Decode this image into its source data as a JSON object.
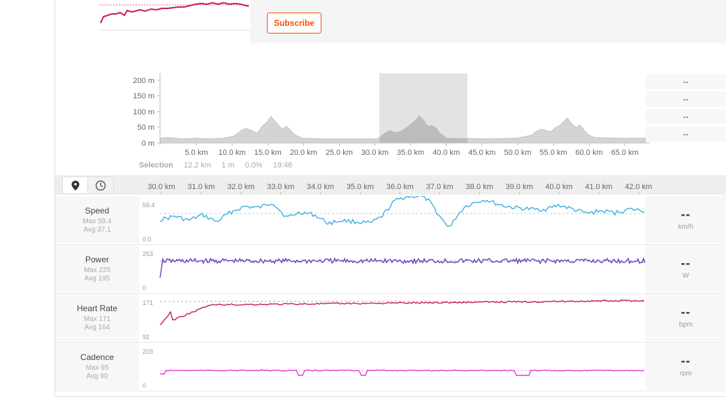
{
  "subscribe_label": "Subscribe",
  "elevation": {
    "y_ticks": [
      "200 m",
      "150 m",
      "100 m",
      "50 m",
      "0 m"
    ],
    "x_ticks": [
      "5.0 km",
      "10.0 km",
      "15.0 km",
      "20.0 km",
      "25.0 km",
      "30.0 km",
      "35.0 km",
      "40.0 km",
      "45.0 km",
      "50.0 km",
      "55.0 km",
      "60.0 km",
      "65.0 km"
    ]
  },
  "selection": {
    "label": "Selection",
    "distance": "12.2 km",
    "elevation": "1 m",
    "grade": "0.0%",
    "time": "19:46"
  },
  "side_values": [
    "--",
    "--",
    "--",
    "--"
  ],
  "timeline_ticks": [
    "30.0 km",
    "31.0 km",
    "32.0 km",
    "33.0 km",
    "34.0 km",
    "35.0 km",
    "36.0 km",
    "37.0 km",
    "38.0 km",
    "39.0 km",
    "40.0 km",
    "41.0 km",
    "42.0 km"
  ],
  "streams": [
    {
      "name": "Speed",
      "max": "Max 59.4",
      "avg": "Avg 37.1",
      "top": "59.4",
      "bottom": "0.0",
      "value": "--",
      "unit": "km/h",
      "color": "#3bb0dc"
    },
    {
      "name": "Power",
      "max": "Max 225",
      "avg": "Avg 195",
      "top": "253",
      "bottom": "0",
      "value": "--",
      "unit": "W",
      "color": "#6a3fb8"
    },
    {
      "name": "Heart Rate",
      "max": "Max 171",
      "avg": "Avg 164",
      "top": "171",
      "bottom": "92",
      "value": "--",
      "unit": "bpm",
      "color": "#c4204c"
    },
    {
      "name": "Cadence",
      "max": "Max 95",
      "avg": "Avg 90",
      "top": "203",
      "bottom": "0",
      "value": "--",
      "unit": "rpm",
      "color": "#e23ad6"
    }
  ]
}
